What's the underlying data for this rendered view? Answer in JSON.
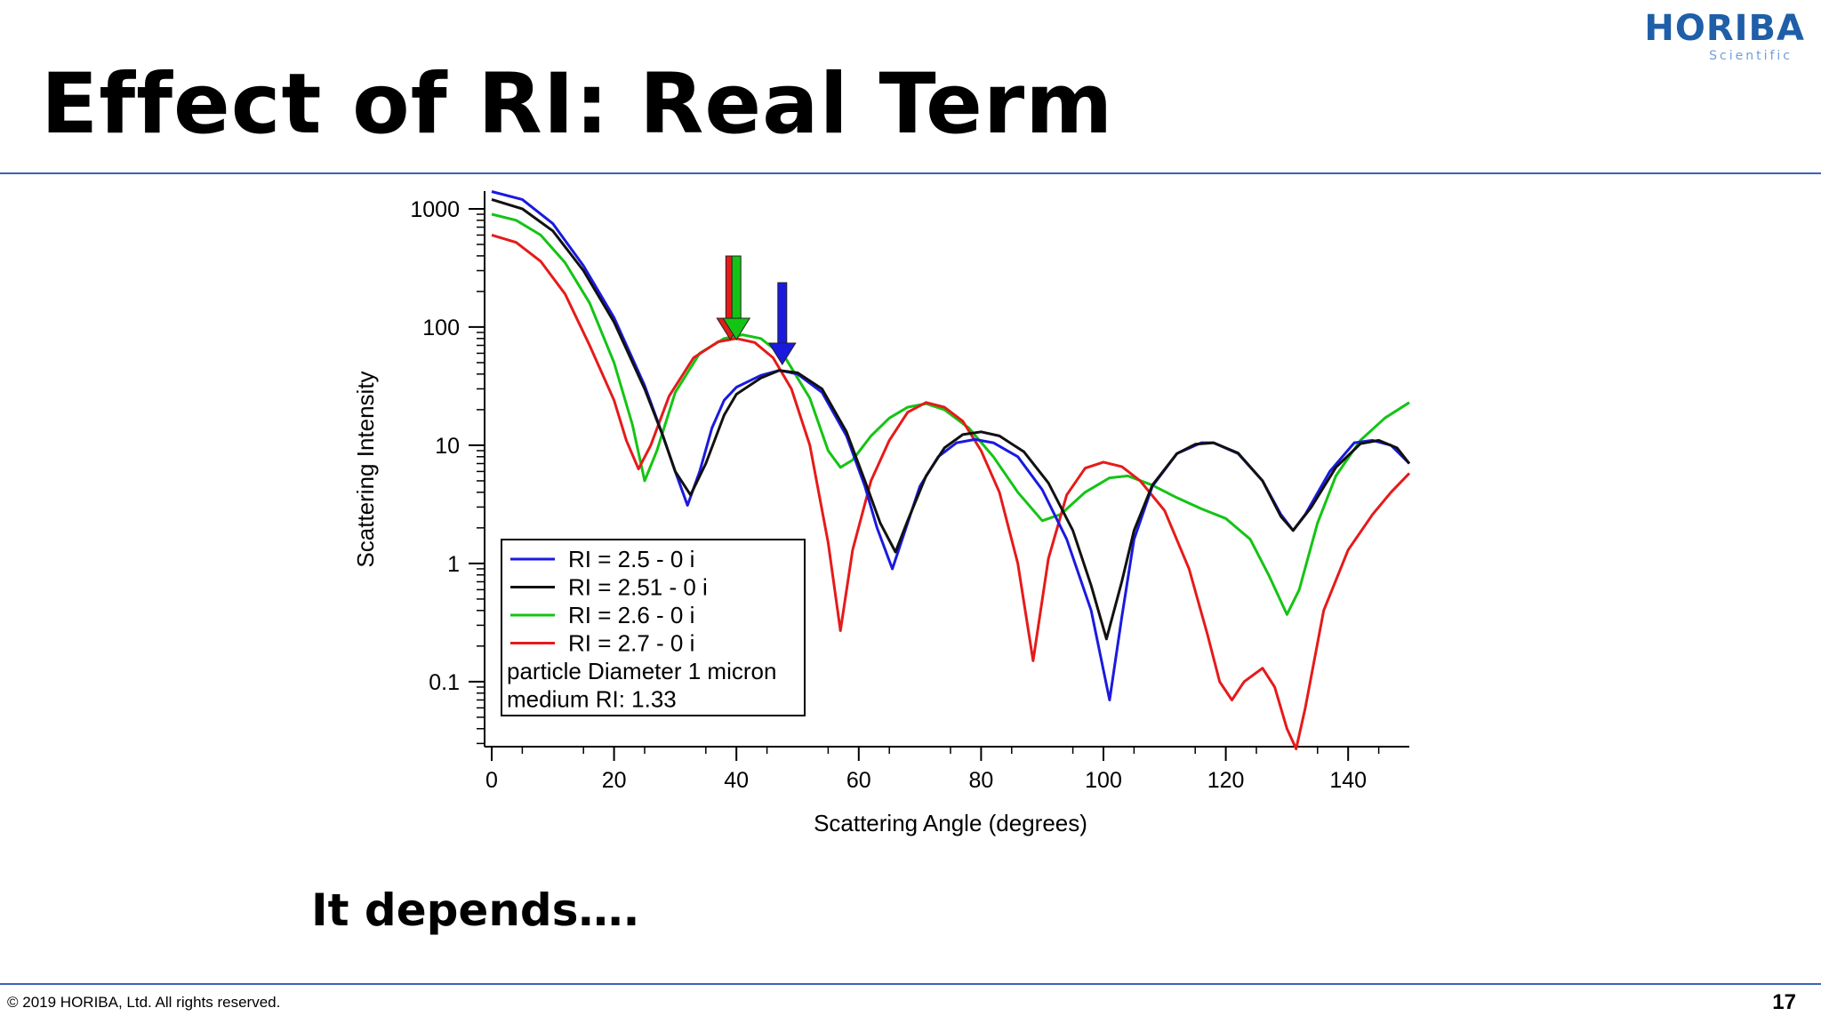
{
  "slide": {
    "title": "Effect of RI:  Real Term",
    "subtitle": "It depends….",
    "copyright": "© 2019 HORIBA, Ltd. All rights reserved.",
    "page_number": "17",
    "logo": {
      "name": "HORIBA",
      "tagline": "Scientific",
      "color": "#1f5ea8"
    },
    "rule_color": "#3a63b8"
  },
  "chart_data": {
    "type": "line",
    "xlabel": "Scattering Angle (degrees)",
    "ylabel": "Scattering Intensity",
    "xlim": [
      0,
      150
    ],
    "ylim_log10": [
      -1.55,
      3.15
    ],
    "yscale": "log",
    "x_ticks": [
      "0",
      "20",
      "40",
      "60",
      "80",
      "100",
      "120",
      "140"
    ],
    "x_tick_values": [
      0,
      20,
      40,
      60,
      80,
      100,
      120,
      140
    ],
    "y_ticks": [
      "1000",
      "100",
      "10",
      "1",
      "0.1"
    ],
    "y_tick_values": [
      1000,
      100,
      10,
      1,
      0.1
    ],
    "grid": false,
    "legend_position": "bottom-left",
    "legend_notes": [
      "particle Diameter 1 micron",
      "medium RI:  1.33"
    ],
    "series": [
      {
        "name": "RI = 2.5  - 0 i",
        "color": "#1a1adf",
        "points": [
          [
            0,
            1400
          ],
          [
            5,
            1200
          ],
          [
            10,
            750
          ],
          [
            15,
            330
          ],
          [
            20,
            120
          ],
          [
            25,
            32
          ],
          [
            28,
            12
          ],
          [
            30,
            6
          ],
          [
            32,
            3.1
          ],
          [
            34,
            6
          ],
          [
            36,
            14
          ],
          [
            38,
            24
          ],
          [
            40,
            31
          ],
          [
            44,
            39
          ],
          [
            47,
            43
          ],
          [
            50,
            40
          ],
          [
            54,
            28
          ],
          [
            58,
            12
          ],
          [
            61,
            4.5
          ],
          [
            63,
            2
          ],
          [
            65.5,
            0.9
          ],
          [
            68,
            2.2
          ],
          [
            70,
            4.5
          ],
          [
            73,
            8
          ],
          [
            76,
            10.5
          ],
          [
            79,
            11.2
          ],
          [
            82,
            10.5
          ],
          [
            86,
            8
          ],
          [
            90,
            4.2
          ],
          [
            94,
            1.6
          ],
          [
            98,
            0.4
          ],
          [
            101,
            0.07
          ],
          [
            103,
            0.35
          ],
          [
            105,
            1.6
          ],
          [
            108,
            4.5
          ],
          [
            112,
            8.5
          ],
          [
            116,
            10.5
          ],
          [
            118,
            10.5
          ],
          [
            122,
            8.5
          ],
          [
            126,
            5
          ],
          [
            129,
            2.6
          ],
          [
            131,
            1.9
          ],
          [
            133,
            2.6
          ],
          [
            137,
            6
          ],
          [
            141,
            10.5
          ],
          [
            144,
            11
          ],
          [
            147,
            10
          ],
          [
            150,
            7
          ]
        ]
      },
      {
        "name": "RI = 2.51 - 0 i",
        "color": "#111111",
        "points": [
          [
            0,
            1200
          ],
          [
            5,
            1000
          ],
          [
            10,
            650
          ],
          [
            15,
            300
          ],
          [
            20,
            110
          ],
          [
            25,
            30
          ],
          [
            28,
            12
          ],
          [
            30,
            6
          ],
          [
            32.5,
            3.8
          ],
          [
            35,
            7
          ],
          [
            38,
            18
          ],
          [
            40,
            27
          ],
          [
            44,
            37
          ],
          [
            47,
            43
          ],
          [
            50,
            41
          ],
          [
            54,
            30
          ],
          [
            58,
            13
          ],
          [
            61,
            5
          ],
          [
            63.5,
            2.2
          ],
          [
            66,
            1.25
          ],
          [
            68,
            2.3
          ],
          [
            71,
            5.5
          ],
          [
            74,
            9.5
          ],
          [
            77,
            12.3
          ],
          [
            80,
            13
          ],
          [
            83,
            12
          ],
          [
            87,
            8.8
          ],
          [
            91,
            4.8
          ],
          [
            95,
            1.9
          ],
          [
            98,
            0.65
          ],
          [
            100.5,
            0.23
          ],
          [
            103,
            0.7
          ],
          [
            105,
            1.9
          ],
          [
            108,
            4.6
          ],
          [
            112,
            8.5
          ],
          [
            115,
            10.2
          ],
          [
            118,
            10.5
          ],
          [
            122,
            8.6
          ],
          [
            126,
            5
          ],
          [
            129,
            2.5
          ],
          [
            131,
            1.9
          ],
          [
            134,
            3
          ],
          [
            138,
            6.5
          ],
          [
            142,
            10.3
          ],
          [
            145,
            11
          ],
          [
            148,
            9.5
          ],
          [
            150,
            7
          ]
        ]
      },
      {
        "name": "RI = 2.6  - 0 i",
        "color": "#14c414",
        "points": [
          [
            0,
            900
          ],
          [
            4,
            800
          ],
          [
            8,
            600
          ],
          [
            12,
            350
          ],
          [
            16,
            160
          ],
          [
            20,
            50
          ],
          [
            23,
            15
          ],
          [
            25,
            5
          ],
          [
            27,
            9
          ],
          [
            30,
            28
          ],
          [
            34,
            60
          ],
          [
            38,
            80
          ],
          [
            41,
            86
          ],
          [
            44,
            80
          ],
          [
            48,
            55
          ],
          [
            52,
            25
          ],
          [
            55,
            9
          ],
          [
            57,
            6.5
          ],
          [
            59,
            7.5
          ],
          [
            62,
            12
          ],
          [
            65,
            17
          ],
          [
            68,
            21
          ],
          [
            71,
            22.5
          ],
          [
            74,
            20
          ],
          [
            78,
            14
          ],
          [
            82,
            8
          ],
          [
            86,
            4
          ],
          [
            90,
            2.3
          ],
          [
            93,
            2.6
          ],
          [
            97,
            4
          ],
          [
            101,
            5.3
          ],
          [
            104,
            5.5
          ],
          [
            108,
            4.6
          ],
          [
            112,
            3.6
          ],
          [
            116,
            2.9
          ],
          [
            120,
            2.4
          ],
          [
            124,
            1.6
          ],
          [
            127,
            0.8
          ],
          [
            130,
            0.37
          ],
          [
            132,
            0.6
          ],
          [
            135,
            2.2
          ],
          [
            138,
            5.5
          ],
          [
            142,
            11
          ],
          [
            146,
            17
          ],
          [
            150,
            23
          ]
        ]
      },
      {
        "name": "RI = 2.7  - 0 i",
        "color": "#e61a1a",
        "points": [
          [
            0,
            600
          ],
          [
            4,
            520
          ],
          [
            8,
            360
          ],
          [
            12,
            190
          ],
          [
            16,
            70
          ],
          [
            20,
            24
          ],
          [
            22,
            11
          ],
          [
            24,
            6.3
          ],
          [
            26,
            10
          ],
          [
            29,
            26
          ],
          [
            33,
            55
          ],
          [
            37,
            75
          ],
          [
            40,
            80
          ],
          [
            43,
            74
          ],
          [
            46,
            55
          ],
          [
            49,
            30
          ],
          [
            52,
            10
          ],
          [
            55,
            1.5
          ],
          [
            57,
            0.27
          ],
          [
            59,
            1.3
          ],
          [
            62,
            5
          ],
          [
            65,
            11
          ],
          [
            68,
            19
          ],
          [
            71,
            23
          ],
          [
            74,
            21
          ],
          [
            77,
            16
          ],
          [
            80,
            9
          ],
          [
            83,
            4
          ],
          [
            86,
            1
          ],
          [
            88.5,
            0.15
          ],
          [
            91,
            1.1
          ],
          [
            94,
            3.8
          ],
          [
            97,
            6.4
          ],
          [
            100,
            7.2
          ],
          [
            103,
            6.6
          ],
          [
            106,
            5
          ],
          [
            110,
            2.8
          ],
          [
            114,
            0.9
          ],
          [
            117,
            0.25
          ],
          [
            119,
            0.1
          ],
          [
            121,
            0.07
          ],
          [
            123,
            0.1
          ],
          [
            126,
            0.13
          ],
          [
            128,
            0.09
          ],
          [
            130,
            0.04
          ],
          [
            131.5,
            0.027
          ],
          [
            133,
            0.06
          ],
          [
            136,
            0.4
          ],
          [
            140,
            1.3
          ],
          [
            144,
            2.6
          ],
          [
            147,
            4
          ],
          [
            150,
            5.8
          ]
        ]
      }
    ],
    "annotations": [
      {
        "type": "arrow",
        "x": 39,
        "color": "#e61a1a",
        "label": ""
      },
      {
        "type": "arrow",
        "x": 40,
        "color": "#14c414",
        "label": ""
      },
      {
        "type": "arrow",
        "x": 47.5,
        "color": "#1a1adf",
        "label": ""
      }
    ]
  }
}
